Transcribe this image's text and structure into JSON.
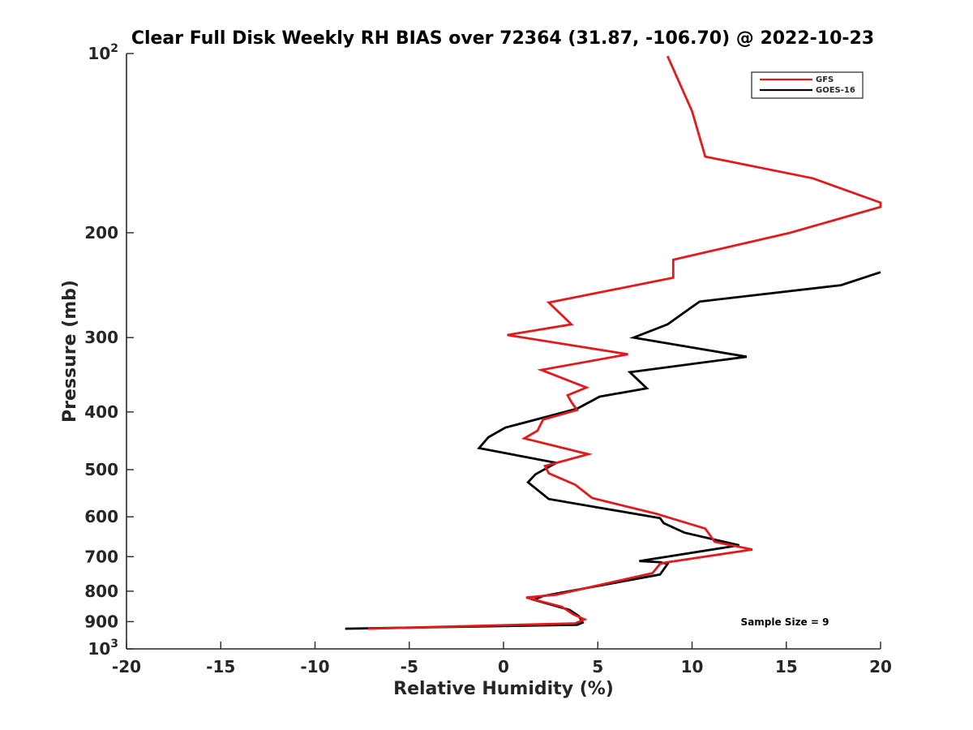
{
  "chart_data": {
    "type": "line",
    "title": "Clear Full Disk Weekly RH BIAS over 72364 (31.87, -106.70) @ 2022-10-23",
    "xlabel": "Relative Humidity (%)",
    "ylabel": "Pressure (mb)",
    "xlim": [
      -20,
      20
    ],
    "ylim": [
      1000,
      100
    ],
    "y_scale": "log",
    "y_reversed": true,
    "grid": false,
    "legend_position": "top-right",
    "annotation": "Sample Size = 9",
    "x_ticks": [
      -20,
      -15,
      -10,
      -5,
      0,
      5,
      10,
      15,
      20
    ],
    "x_tick_labels": [
      "-20",
      "-15",
      "-10",
      "-5",
      "0",
      "5",
      "10",
      "15",
      "20"
    ],
    "y_ticks": [
      {
        "value": 100,
        "base": "10",
        "exp": "2"
      },
      {
        "value": 200,
        "label": "200"
      },
      {
        "value": 300,
        "label": "300"
      },
      {
        "value": 400,
        "label": "400"
      },
      {
        "value": 500,
        "label": "500"
      },
      {
        "value": 600,
        "label": "600"
      },
      {
        "value": 700,
        "label": "700"
      },
      {
        "value": 800,
        "label": "800"
      },
      {
        "value": 900,
        "label": "900"
      },
      {
        "value": 1000,
        "base": "10",
        "exp": "3"
      }
    ],
    "series": [
      {
        "name": "GFS",
        "color": "#e31a1c",
        "points": [
          [
            -7.2,
            925
          ],
          [
            3.8,
            906
          ],
          [
            4.3,
            892
          ],
          [
            3.7,
            875
          ],
          [
            3.1,
            850
          ],
          [
            1.2,
            820
          ],
          [
            2.8,
            811
          ],
          [
            7.9,
            746
          ],
          [
            8.3,
            720
          ],
          [
            8.6,
            716
          ],
          [
            13.2,
            681
          ],
          [
            11.2,
            661
          ],
          [
            10.7,
            628
          ],
          [
            8.1,
            593
          ],
          [
            4.7,
            558
          ],
          [
            3.8,
            530
          ],
          [
            2.4,
            507
          ],
          [
            2.2,
            493
          ],
          [
            4.5,
            471
          ],
          [
            1.1,
            443
          ],
          [
            1.8,
            430
          ],
          [
            2.1,
            412
          ],
          [
            3.9,
            397
          ],
          [
            3.6,
            385
          ],
          [
            3.4,
            375
          ],
          [
            4.4,
            364
          ],
          [
            2.0,
            340
          ],
          [
            6.6,
            320
          ],
          [
            0.2,
            297
          ],
          [
            3.6,
            285
          ],
          [
            2.4,
            262
          ],
          [
            9.0,
            238
          ],
          [
            9.0,
            222
          ],
          [
            15.2,
            200
          ],
          [
            20.0,
            181
          ],
          [
            20.0,
            178
          ],
          [
            16.4,
            162
          ],
          [
            10.7,
            149
          ],
          [
            10.0,
            125
          ],
          [
            8.7,
            101
          ]
        ]
      },
      {
        "name": "GOES-16",
        "color": "#000000",
        "points": [
          [
            -8.4,
            925
          ],
          [
            3.9,
            911
          ],
          [
            4.2,
            903
          ],
          [
            4.0,
            881
          ],
          [
            3.5,
            860
          ],
          [
            1.6,
            827
          ],
          [
            2.1,
            815
          ],
          [
            8.3,
            750
          ],
          [
            8.7,
            720
          ],
          [
            8.3,
            715
          ],
          [
            7.2,
            712
          ],
          [
            12.5,
            670
          ],
          [
            9.6,
            638
          ],
          [
            8.5,
            615
          ],
          [
            8.3,
            603
          ],
          [
            2.4,
            560
          ],
          [
            1.3,
            525
          ],
          [
            1.7,
            509
          ],
          [
            2.8,
            487
          ],
          [
            -1.3,
            460
          ],
          [
            -0.8,
            441
          ],
          [
            0.1,
            425
          ],
          [
            3.9,
            395
          ],
          [
            5.1,
            377
          ],
          [
            7.6,
            365
          ],
          [
            6.7,
            343
          ],
          [
            12.9,
            323
          ],
          [
            6.9,
            300
          ],
          [
            8.7,
            285
          ],
          [
            10.4,
            261
          ],
          [
            17.9,
            245
          ],
          [
            20.0,
            233
          ]
        ]
      }
    ]
  }
}
